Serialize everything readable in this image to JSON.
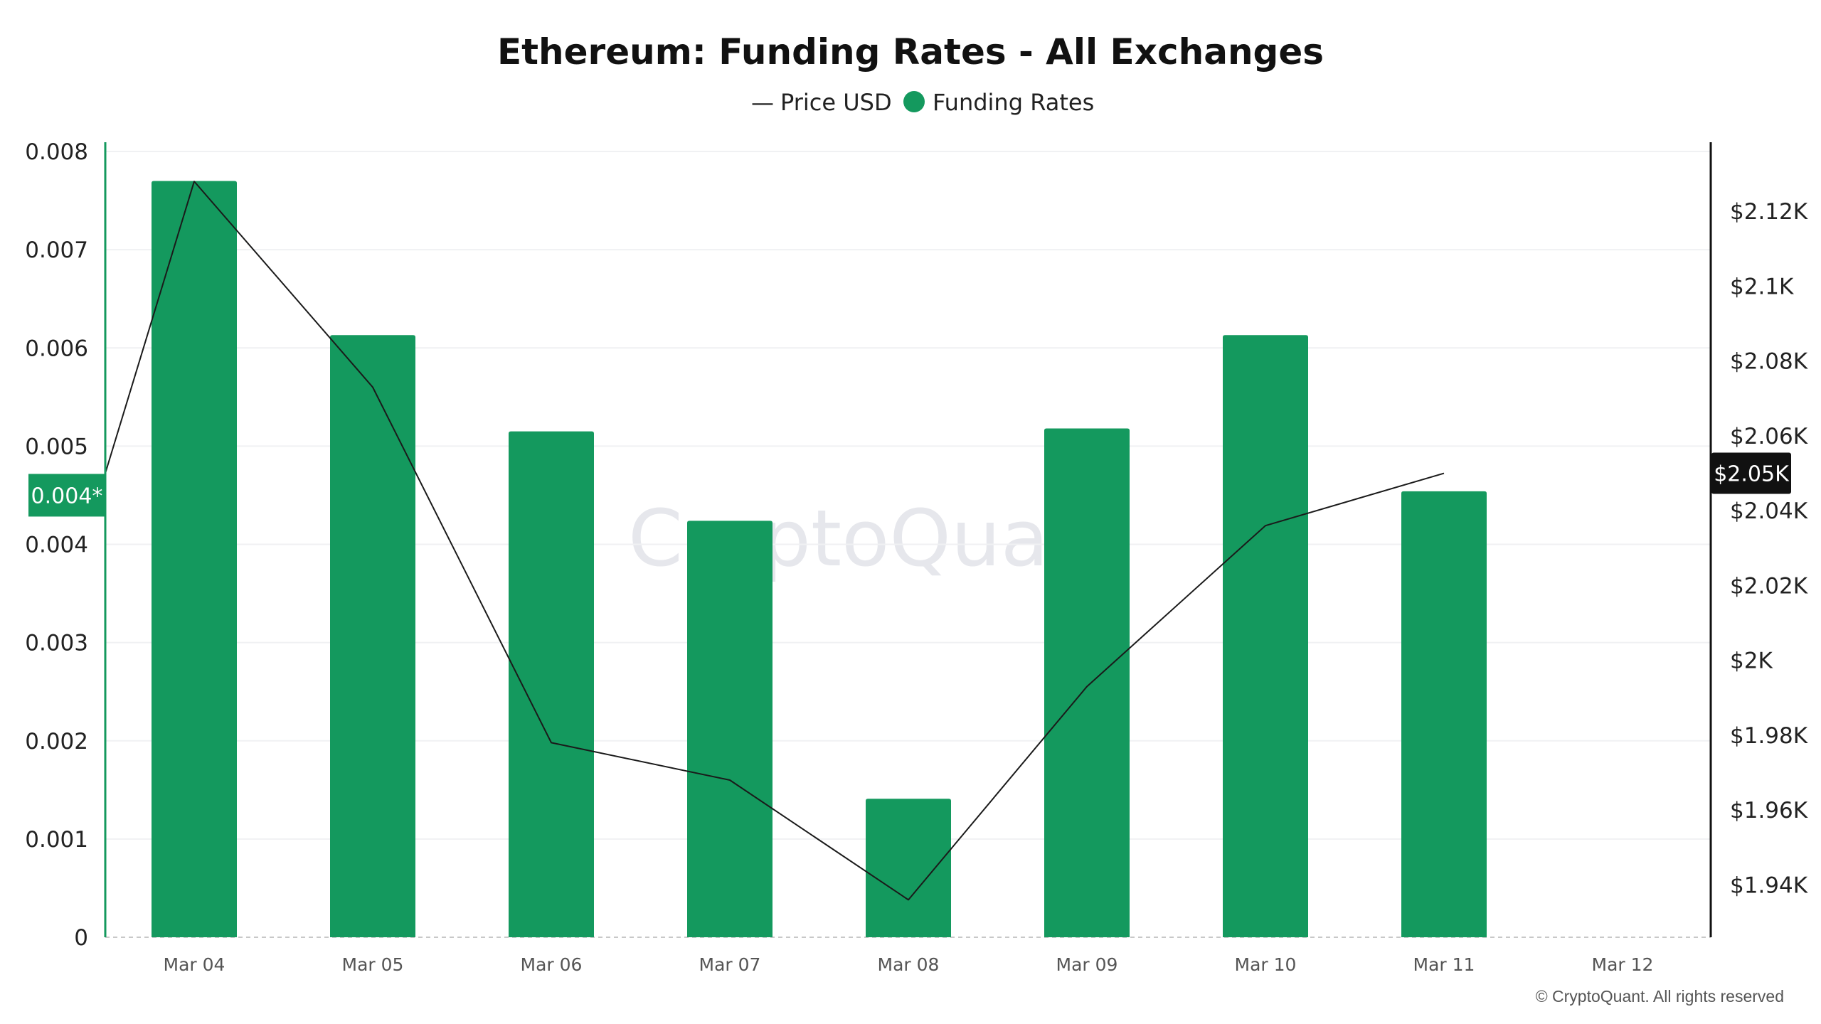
{
  "chart_data": {
    "type": "bar",
    "title": "Ethereum: Funding Rates - All Exchanges",
    "categories": [
      "Mar 04",
      "Mar 05",
      "Mar 06",
      "Mar 07",
      "Mar 08",
      "Mar 09",
      "Mar 10",
      "Mar 11",
      "Mar 12"
    ],
    "series": [
      {
        "name": "Funding Rates",
        "type": "bar",
        "axis": "left",
        "color": "#14995e",
        "values": [
          0.0077,
          0.00613,
          0.00515,
          0.00424,
          0.00141,
          0.00518,
          0.00613,
          0.00454,
          null
        ]
      },
      {
        "name": "Price USD",
        "type": "line",
        "axis": "right",
        "color": "#1a1a1a",
        "values": [
          2128,
          2073,
          1978,
          1968,
          1936,
          1993,
          2036,
          2050,
          null
        ]
      }
    ],
    "price_line_start": 2050,
    "y_left": {
      "ticks": [
        "0.008",
        "0.007",
        "0.006",
        "0.005",
        "0.004",
        "0.003",
        "0.002",
        "0.001",
        "0"
      ],
      "ylim": [
        0,
        0.008
      ]
    },
    "y_right": {
      "ticks": [
        "$2.12K",
        "$2.1K",
        "$2.08K",
        "$2.06K",
        "$2.04K",
        "$2.02K",
        "$2K",
        "$1.98K",
        "$1.96K",
        "$1.94K"
      ],
      "tick_values": [
        2120,
        2100,
        2080,
        2060,
        2040,
        2020,
        2000,
        1980,
        1960,
        1940
      ],
      "ylim": [
        1926,
        2136
      ]
    },
    "current_value_badges": {
      "left": {
        "label": "0.004*",
        "value": 0.0045,
        "color": "#14995e"
      },
      "right": {
        "label": "$2.05K",
        "value": 2050,
        "color": "#111111"
      }
    },
    "legend": {
      "placement": "top-center",
      "items": [
        {
          "label": "Price USD",
          "marker": "—"
        },
        {
          "label": "Funding Rates",
          "marker": "circle"
        }
      ]
    },
    "grid": true,
    "watermark": "CryptoQuant",
    "copyright": "© CryptoQuant. All rights reserved"
  }
}
